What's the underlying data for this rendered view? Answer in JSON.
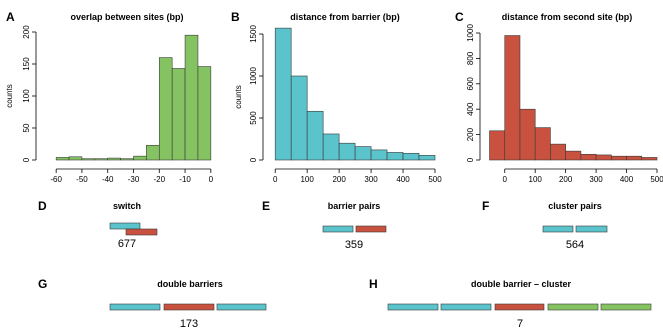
{
  "colors": {
    "cyan": "#5bc3cb",
    "red": "#c8513f",
    "green": "#85c362",
    "outline": "#3a3a3a"
  },
  "chart_data": [
    {
      "panel": "A",
      "type": "bar",
      "title": "overlap between sites (bp)",
      "xlabel": "",
      "ylabel": "counts",
      "color": "green",
      "xlim": [
        -62,
        2
      ],
      "ylim": [
        0,
        200
      ],
      "xticks": [
        -60,
        -50,
        -40,
        -30,
        -20,
        -10,
        0
      ],
      "yticks": [
        0,
        50,
        100,
        150,
        200
      ],
      "bins": [
        [
          -60,
          -55
        ],
        [
          -55,
          -50
        ],
        [
          -50,
          -45
        ],
        [
          -45,
          -40
        ],
        [
          -40,
          -35
        ],
        [
          -35,
          -30
        ],
        [
          -30,
          -25
        ],
        [
          -25,
          -20
        ],
        [
          -20,
          -15
        ],
        [
          -15,
          -10
        ],
        [
          -10,
          -5
        ],
        [
          -5,
          0
        ]
      ],
      "values": [
        4,
        5,
        2,
        2,
        3,
        2,
        6,
        23,
        160,
        143,
        195,
        146
      ]
    },
    {
      "panel": "B",
      "type": "bar",
      "title": "distance from barrier (bp)",
      "xlabel": "",
      "ylabel": "counts",
      "color": "cyan",
      "xlim": [
        -10,
        500
      ],
      "ylim": [
        0,
        1500
      ],
      "xticks": [
        0,
        100,
        200,
        300,
        400,
        500
      ],
      "yticks": [
        0,
        500,
        1000,
        1500
      ],
      "bins": [
        [
          0,
          50
        ],
        [
          50,
          100
        ],
        [
          100,
          150
        ],
        [
          150,
          200
        ],
        [
          200,
          250
        ],
        [
          250,
          300
        ],
        [
          300,
          350
        ],
        [
          350,
          400
        ],
        [
          400,
          450
        ],
        [
          450,
          500
        ]
      ],
      "values": [
        1570,
        1000,
        580,
        310,
        200,
        160,
        120,
        90,
        80,
        55
      ]
    },
    {
      "panel": "C",
      "type": "bar",
      "title": "distance from second site (bp)",
      "xlabel": "",
      "ylabel": "",
      "color": "red",
      "xlim": [
        -55,
        500
      ],
      "ylim": [
        0,
        1000
      ],
      "xticks": [
        0,
        100,
        200,
        300,
        400,
        500
      ],
      "yticks": [
        0,
        200,
        400,
        600,
        800,
        1000
      ],
      "bins": [
        [
          -50,
          0
        ],
        [
          0,
          50
        ],
        [
          50,
          100
        ],
        [
          100,
          150
        ],
        [
          150,
          200
        ],
        [
          200,
          250
        ],
        [
          250,
          300
        ],
        [
          300,
          350
        ],
        [
          350,
          400
        ],
        [
          400,
          450
        ],
        [
          450,
          500
        ]
      ],
      "values": [
        230,
        980,
        400,
        255,
        125,
        70,
        45,
        40,
        30,
        30,
        20
      ]
    }
  ],
  "diagrams": [
    {
      "panel": "D",
      "title": "switch",
      "count": "677",
      "segments": [
        "cyan",
        "red"
      ],
      "layout": "staggered"
    },
    {
      "panel": "E",
      "title": "barrier pairs",
      "count": "359",
      "segments": [
        "cyan",
        "red"
      ],
      "layout": "row"
    },
    {
      "panel": "F",
      "title": "cluster pairs",
      "count": "564",
      "segments": [
        "cyan",
        "cyan"
      ],
      "layout": "row"
    },
    {
      "panel": "G",
      "title": "double barriers",
      "count": "173",
      "segments": [
        "cyan",
        "red",
        "cyan"
      ],
      "layout": "row"
    },
    {
      "panel": "H",
      "title": "double barrier – cluster",
      "count": "7",
      "segments": [
        "cyan",
        "cyan",
        "red",
        "green",
        "green"
      ],
      "layout": "row"
    }
  ]
}
